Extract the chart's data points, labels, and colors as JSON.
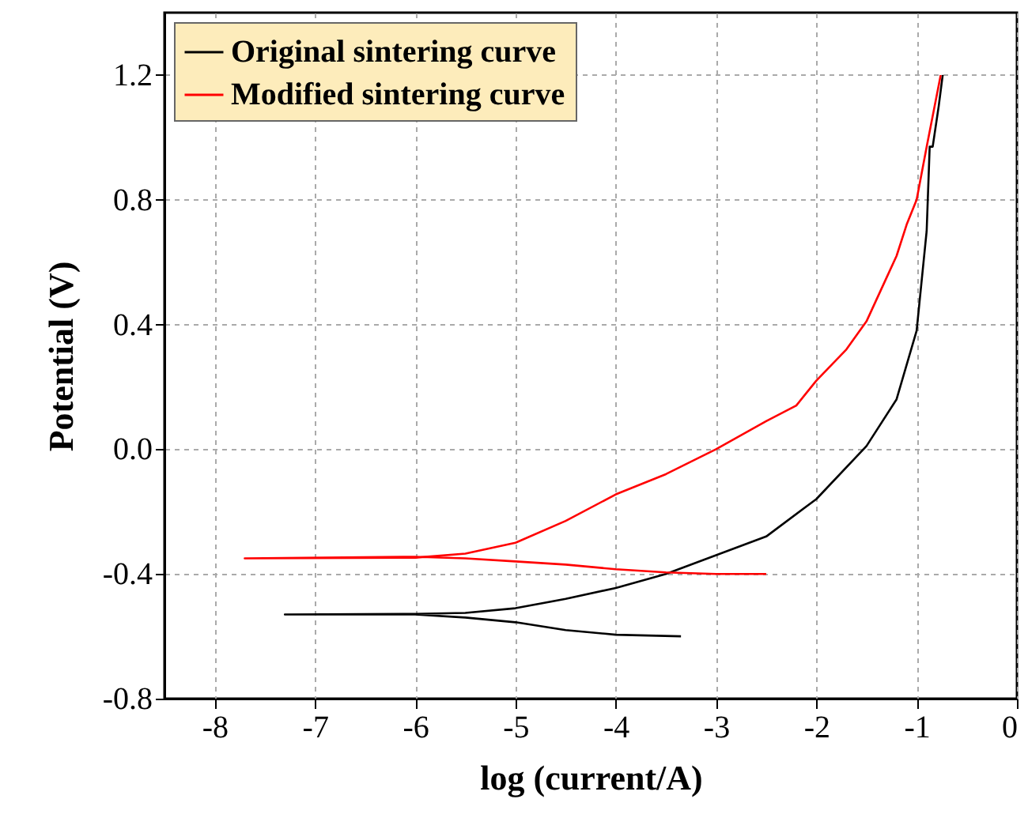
{
  "chart_data": {
    "type": "line",
    "xlabel": "log (current/A)",
    "ylabel": "Potential (V)",
    "xlim": [
      -8.5,
      0
    ],
    "xticks": [
      -8,
      -7,
      -6,
      -5,
      -4,
      -3,
      -2,
      -1,
      0
    ],
    "ylim": [
      -0.8,
      1.4
    ],
    "yticks": [
      -0.8,
      -0.4,
      {
        "value": 0,
        "label": "0.0"
      },
      0.4,
      0.8,
      1.2
    ],
    "grid": true,
    "legend": "top left",
    "line_style": "solid",
    "marker": "none",
    "series": [
      {
        "name": "Original sintering curve",
        "color": "#000000",
        "x": [
          -3.35,
          -4,
          -4.5,
          -5,
          -5.5,
          -6,
          -7.3,
          -6,
          -5.5,
          -5,
          -4.5,
          -4,
          -3.5,
          -3,
          -2.5,
          -2,
          -1.5,
          -1.2,
          -1,
          -0.9,
          -0.87,
          -0.84,
          -0.78,
          -0.74
        ],
        "values": [
          -0.6,
          -0.595,
          -0.58,
          -0.555,
          -0.54,
          -0.53,
          -0.53,
          -0.528,
          -0.525,
          -0.51,
          -0.48,
          -0.445,
          -0.4,
          -0.34,
          -0.28,
          -0.16,
          0.01,
          0.16,
          0.38,
          0.7,
          0.97,
          0.97,
          1.1,
          1.2
        ]
      },
      {
        "name": "Modified sintering curve",
        "color": "#ff0000",
        "x": [
          -2.5,
          -3,
          -3.5,
          -4,
          -4.5,
          -5,
          -5.5,
          -6,
          -7.7,
          -6,
          -5.5,
          -5,
          -4.5,
          -4,
          -3.5,
          -3,
          -2.5,
          -2.2,
          -2,
          -1.7,
          -1.5,
          -1.3,
          -1.2,
          -1.1,
          -1,
          -0.9,
          -0.76
        ],
        "values": [
          -0.4,
          -0.4,
          -0.395,
          -0.385,
          -0.37,
          -0.36,
          -0.35,
          -0.345,
          -0.35,
          -0.348,
          -0.335,
          -0.3,
          -0.23,
          -0.145,
          -0.08,
          0.0,
          0.09,
          0.14,
          0.22,
          0.32,
          0.41,
          0.55,
          0.62,
          0.72,
          0.8,
          0.97,
          1.2
        ]
      }
    ]
  }
}
